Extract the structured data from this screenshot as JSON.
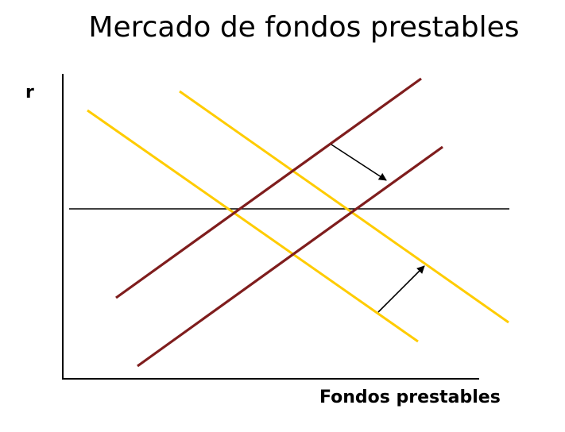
{
  "title": "Mercado de fondos prestables",
  "axes": {
    "y_label": "r",
    "x_label": "Fondos prestables"
  },
  "colors": {
    "supply": "#7f1d1d",
    "demand": "#ffcc00",
    "axes": "#000000",
    "equilibrium_rate": "#000000",
    "arrows": "#000000"
  },
  "curves": {
    "supply": [
      "supply-initial",
      "supply-shifted"
    ],
    "demand": [
      "demand-initial",
      "demand-shifted"
    ]
  },
  "shifts": [
    {
      "curve": "supply",
      "direction": "right"
    },
    {
      "curve": "demand",
      "direction": "right"
    }
  ],
  "equilibrium_rate_unchanged": true
}
